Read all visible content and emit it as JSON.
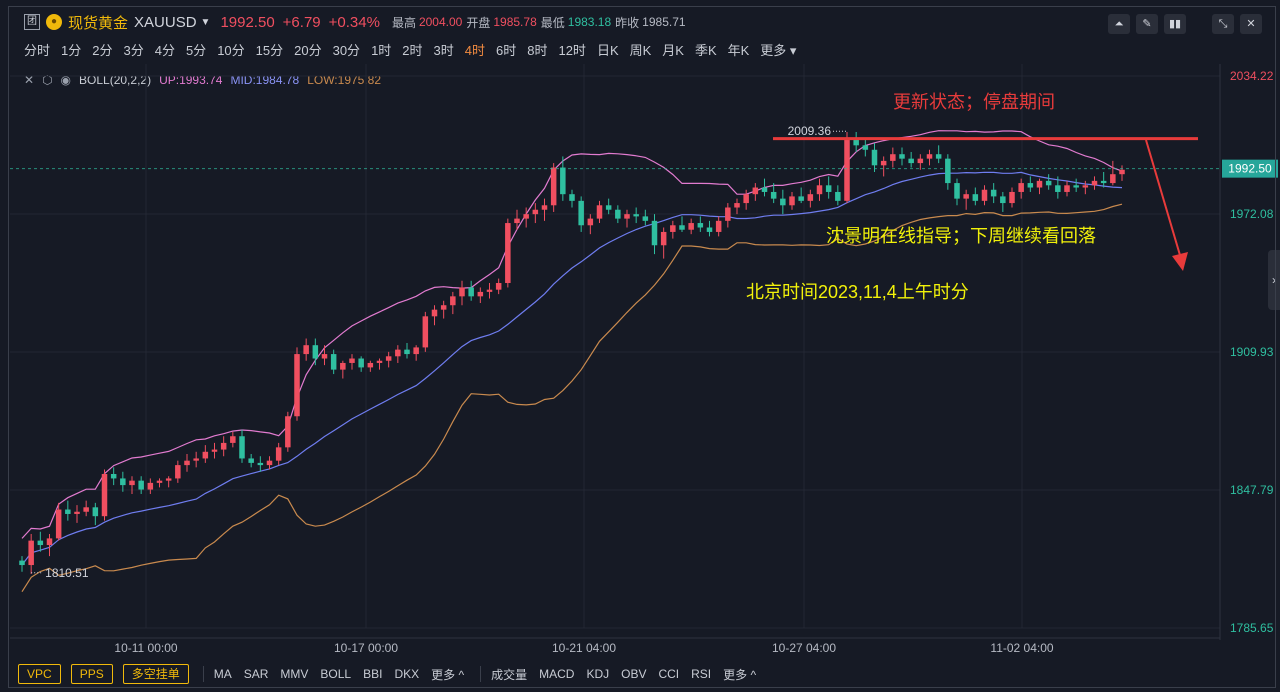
{
  "header": {
    "box_label": "团",
    "name": "现货黄金",
    "symbol": "XAUUSD",
    "price": "1992.50",
    "change": "+6.79",
    "change_pct": "+0.34%",
    "high_label": "最高",
    "high": "2004.00",
    "open_label": "开盘",
    "open": "1985.78",
    "low_label": "最低",
    "low": "1983.18",
    "prev_label": "昨收",
    "prev": "1985.71"
  },
  "timeframes": [
    "分时",
    "1分",
    "2分",
    "3分",
    "4分",
    "5分",
    "10分",
    "15分",
    "20分",
    "30分",
    "1时",
    "2时",
    "3时",
    "4时",
    "6时",
    "8时",
    "12时",
    "日K",
    "周K",
    "月K",
    "季K",
    "年K",
    "更多"
  ],
  "active_timeframe_index": 13,
  "indicator": {
    "name": "BOLL(20,2,2)",
    "up": "UP:1993.74",
    "mid": "MID:1984.78",
    "low": "LOW:1975.82"
  },
  "annotations": {
    "status": "更新状态；停盘期间",
    "guide": "沈景明在线指导；下周继续看回落",
    "time": "北京时间2023,11,4上午时分"
  },
  "bottom_buttons": [
    "VPC",
    "PPS",
    "多空挂单"
  ],
  "bottom_main_indicators": [
    "MA",
    "SAR",
    "MMV",
    "BOLL",
    "BBI",
    "DKX",
    "更多 ^"
  ],
  "bottom_sub_indicators": [
    "成交量",
    "MACD",
    "KDJ",
    "OBV",
    "CCI",
    "RSI",
    "更多 ^"
  ],
  "colors": {
    "up": "#f04f60",
    "down": "#2fbfa0",
    "boll_up": "#e27bd0",
    "boll_mid": "#6f7df0",
    "boll_low": "#c98a4e",
    "annotation_red": "#e83b3b",
    "annotation_yellow": "#f2f20a"
  },
  "chart_data": {
    "type": "candlestick",
    "y_ticks": [
      "2034.22",
      "1972.08",
      "1909.93",
      "1847.79",
      "1785.65"
    ],
    "y_tick_values": [
      2034.22,
      1972.08,
      1909.93,
      1847.79,
      1785.65
    ],
    "ylim": [
      1785.65,
      2034.22
    ],
    "x_ticks": [
      "10-11 00:00",
      "10-17 00:00",
      "10-21 04:00",
      "10-27 04:00",
      "11-02 04:00"
    ],
    "current_price_label": "1992.50",
    "current_price": 1992.5,
    "high_marker": "2009.36",
    "high_marker_value": 2009.36,
    "low_marker": "1810.51",
    "low_marker_value": 1810.51,
    "resistance_level": 2006,
    "candles": [
      [
        1816,
        1818,
        1811,
        1814
      ],
      [
        1814,
        1828,
        1810,
        1825
      ],
      [
        1825,
        1829,
        1820,
        1823
      ],
      [
        1823,
        1828,
        1818,
        1826
      ],
      [
        1826,
        1842,
        1825,
        1839
      ],
      [
        1839,
        1843,
        1834,
        1837
      ],
      [
        1837,
        1841,
        1833,
        1838
      ],
      [
        1838,
        1843,
        1836,
        1840
      ],
      [
        1840,
        1842,
        1832,
        1836
      ],
      [
        1836,
        1857,
        1834,
        1855
      ],
      [
        1855,
        1858,
        1850,
        1853
      ],
      [
        1853,
        1856,
        1847,
        1850
      ],
      [
        1850,
        1854,
        1846,
        1852
      ],
      [
        1852,
        1854,
        1846,
        1848
      ],
      [
        1848,
        1853,
        1846,
        1851
      ],
      [
        1851,
        1853,
        1849,
        1852
      ],
      [
        1852,
        1854,
        1849,
        1853
      ],
      [
        1853,
        1861,
        1851,
        1859
      ],
      [
        1859,
        1864,
        1856,
        1861
      ],
      [
        1861,
        1865,
        1858,
        1862
      ],
      [
        1862,
        1868,
        1860,
        1865
      ],
      [
        1865,
        1869,
        1862,
        1866
      ],
      [
        1866,
        1872,
        1863,
        1869
      ],
      [
        1869,
        1874,
        1867,
        1872
      ],
      [
        1872,
        1875,
        1860,
        1862
      ],
      [
        1862,
        1864,
        1858,
        1860
      ],
      [
        1860,
        1863,
        1856,
        1859
      ],
      [
        1859,
        1863,
        1857,
        1861
      ],
      [
        1861,
        1869,
        1859,
        1867
      ],
      [
        1867,
        1883,
        1865,
        1881
      ],
      [
        1881,
        1912,
        1879,
        1909
      ],
      [
        1909,
        1916,
        1906,
        1913
      ],
      [
        1913,
        1916,
        1904,
        1907
      ],
      [
        1907,
        1913,
        1904,
        1909
      ],
      [
        1909,
        1911,
        1900,
        1902
      ],
      [
        1902,
        1906,
        1898,
        1905
      ],
      [
        1905,
        1909,
        1902,
        1907
      ],
      [
        1907,
        1908,
        1901,
        1903
      ],
      [
        1903,
        1906,
        1901,
        1905
      ],
      [
        1905,
        1907,
        1902,
        1906
      ],
      [
        1906,
        1910,
        1903,
        1908
      ],
      [
        1908,
        1913,
        1905,
        1911
      ],
      [
        1911,
        1914,
        1907,
        1909
      ],
      [
        1909,
        1913,
        1906,
        1912
      ],
      [
        1912,
        1928,
        1910,
        1926
      ],
      [
        1926,
        1931,
        1922,
        1929
      ],
      [
        1929,
        1933,
        1925,
        1931
      ],
      [
        1931,
        1937,
        1927,
        1935
      ],
      [
        1935,
        1942,
        1931,
        1939
      ],
      [
        1939,
        1942,
        1933,
        1935
      ],
      [
        1935,
        1939,
        1932,
        1937
      ],
      [
        1937,
        1941,
        1934,
        1938
      ],
      [
        1938,
        1943,
        1936,
        1941
      ],
      [
        1941,
        1970,
        1939,
        1968
      ],
      [
        1968,
        1974,
        1965,
        1970
      ],
      [
        1970,
        1975,
        1966,
        1972
      ],
      [
        1972,
        1977,
        1968,
        1974
      ],
      [
        1974,
        1979,
        1969,
        1976
      ],
      [
        1976,
        1995,
        1973,
        1993
      ],
      [
        1993,
        1998,
        1978,
        1981
      ],
      [
        1981,
        1983,
        1975,
        1978
      ],
      [
        1978,
        1980,
        1964,
        1967
      ],
      [
        1967,
        1972,
        1963,
        1970
      ],
      [
        1970,
        1978,
        1968,
        1976
      ],
      [
        1976,
        1979,
        1972,
        1974
      ],
      [
        1974,
        1976,
        1968,
        1970
      ],
      [
        1970,
        1974,
        1966,
        1972
      ],
      [
        1972,
        1975,
        1968,
        1971
      ],
      [
        1971,
        1974,
        1967,
        1969
      ],
      [
        1969,
        1972,
        1954,
        1958
      ],
      [
        1958,
        1966,
        1952,
        1964
      ],
      [
        1964,
        1969,
        1961,
        1967
      ],
      [
        1967,
        1971,
        1964,
        1965
      ],
      [
        1965,
        1970,
        1963,
        1968
      ],
      [
        1968,
        1971,
        1964,
        1966
      ],
      [
        1966,
        1969,
        1962,
        1964
      ],
      [
        1964,
        1971,
        1962,
        1969
      ],
      [
        1969,
        1977,
        1966,
        1975
      ],
      [
        1975,
        1979,
        1972,
        1977
      ],
      [
        1977,
        1983,
        1974,
        1981
      ],
      [
        1981,
        1986,
        1978,
        1984
      ],
      [
        1984,
        1988,
        1980,
        1982
      ],
      [
        1982,
        1986,
        1977,
        1979
      ],
      [
        1979,
        1983,
        1972,
        1976
      ],
      [
        1976,
        1982,
        1974,
        1980
      ],
      [
        1980,
        1984,
        1977,
        1978
      ],
      [
        1978,
        1983,
        1975,
        1981
      ],
      [
        1981,
        1988,
        1978,
        1985
      ],
      [
        1985,
        1989,
        1979,
        1982
      ],
      [
        1982,
        1985,
        1976,
        1978
      ],
      [
        1978,
        2009,
        1977,
        2006
      ],
      [
        2006,
        2009,
        2000,
        2003
      ],
      [
        2003,
        2006,
        1998,
        2001
      ],
      [
        2001,
        2004,
        1991,
        1994
      ],
      [
        1994,
        1998,
        1989,
        1996
      ],
      [
        1996,
        2002,
        1993,
        1999
      ],
      [
        1999,
        2002,
        1994,
        1997
      ],
      [
        1997,
        2000,
        1993,
        1995
      ],
      [
        1995,
        1999,
        1992,
        1997
      ],
      [
        1997,
        2001,
        1994,
        1999
      ],
      [
        1999,
        2003,
        1995,
        1997
      ],
      [
        1997,
        1999,
        1983,
        1986
      ],
      [
        1986,
        1988,
        1976,
        1979
      ],
      [
        1979,
        1983,
        1974,
        1981
      ],
      [
        1981,
        1984,
        1976,
        1978
      ],
      [
        1978,
        1985,
        1976,
        1983
      ],
      [
        1983,
        1986,
        1977,
        1980
      ],
      [
        1980,
        1982,
        1973,
        1977
      ],
      [
        1977,
        1984,
        1975,
        1982
      ],
      [
        1982,
        1988,
        1979,
        1986
      ],
      [
        1986,
        1989,
        1982,
        1984
      ],
      [
        1984,
        1988,
        1981,
        1987
      ],
      [
        1987,
        1990,
        1983,
        1985
      ],
      [
        1985,
        1989,
        1979,
        1982
      ],
      [
        1982,
        1987,
        1980,
        1985
      ],
      [
        1985,
        1988,
        1982,
        1984
      ],
      [
        1984,
        1987,
        1981,
        1985
      ],
      [
        1985,
        1989,
        1983,
        1987
      ],
      [
        1987,
        1991,
        1984,
        1986
      ],
      [
        1986,
        1996,
        1985,
        1990
      ],
      [
        1990,
        1994,
        1987,
        1992
      ]
    ]
  }
}
